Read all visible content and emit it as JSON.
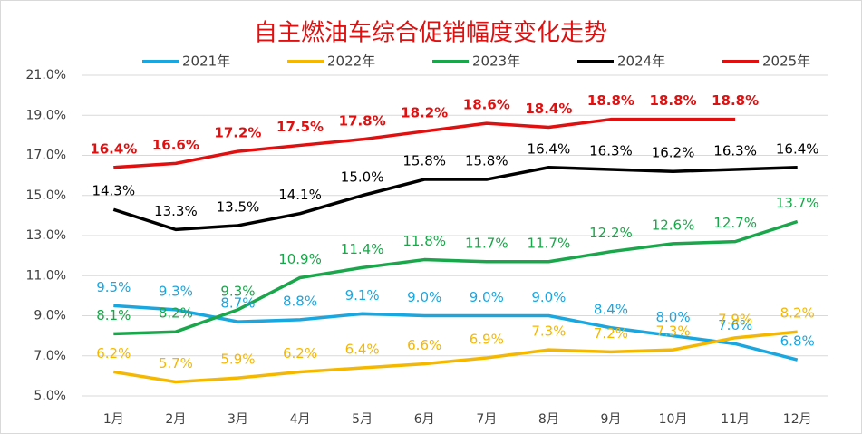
{
  "chart_data": {
    "type": "line",
    "title": "自主燃油车综合促销幅度变化走势",
    "categories": [
      "1月",
      "2月",
      "3月",
      "4月",
      "5月",
      "6月",
      "7月",
      "8月",
      "9月",
      "10月",
      "11月",
      "12月"
    ],
    "ylim": [
      5,
      21
    ],
    "yticks": [
      {
        "value": 5,
        "label": "5.0%"
      },
      {
        "value": 7,
        "label": "7.0%"
      },
      {
        "value": 9,
        "label": "9.0%"
      },
      {
        "value": 11,
        "label": "11.0%"
      },
      {
        "value": 13,
        "label": "13.0%"
      },
      {
        "value": 15,
        "label": "15.0%"
      },
      {
        "value": 17,
        "label": "17.0%"
      },
      {
        "value": 19,
        "label": "19.0%"
      },
      {
        "value": 21,
        "label": "21.0%"
      }
    ],
    "grid": true,
    "legend": "top",
    "series": [
      {
        "name": "2021年",
        "color": "#1aa7e0",
        "values": [
          9.5,
          9.3,
          8.7,
          8.8,
          9.1,
          9.0,
          9.0,
          9.0,
          8.4,
          8.0,
          7.6,
          6.8
        ],
        "value_labels": [
          "9.5%",
          "9.3%",
          "8.7%",
          "8.8%",
          "9.1%",
          "9.0%",
          "9.0%",
          "9.0%",
          "8.4%",
          "8.0%",
          "7.6%",
          "6.8%"
        ]
      },
      {
        "name": "2022年",
        "color": "#f5b800",
        "values": [
          6.2,
          5.7,
          5.9,
          6.2,
          6.4,
          6.6,
          6.9,
          7.3,
          7.2,
          7.3,
          7.9,
          8.2
        ],
        "value_labels": [
          "6.2%",
          "5.7%",
          "5.9%",
          "6.2%",
          "6.4%",
          "6.6%",
          "6.9%",
          "7.3%",
          "7.2%",
          "7.3%",
          "7.9%",
          "8.2%"
        ]
      },
      {
        "name": "2023年",
        "color": "#1aa64a",
        "values": [
          8.1,
          8.2,
          9.3,
          10.9,
          11.4,
          11.8,
          11.7,
          11.7,
          12.2,
          12.6,
          12.7,
          13.7
        ],
        "value_labels": [
          "8.1%",
          "8.2%",
          "9.3%",
          "10.9%",
          "11.4%",
          "11.8%",
          "11.7%",
          "11.7%",
          "12.2%",
          "12.6%",
          "12.7%",
          "13.7%"
        ]
      },
      {
        "name": "2024年",
        "color": "#000000",
        "values": [
          14.3,
          13.3,
          13.5,
          14.1,
          15.0,
          15.8,
          15.8,
          16.4,
          16.3,
          16.2,
          16.3,
          16.4
        ],
        "value_labels": [
          "14.3%",
          "13.3%",
          "13.5%",
          "14.1%",
          "15.0%",
          "15.8%",
          "15.8%",
          "16.4%",
          "16.3%",
          "16.2%",
          "16.3%",
          "16.4%"
        ]
      },
      {
        "name": "2025年",
        "color": "#e01010",
        "values": [
          16.4,
          16.6,
          17.2,
          17.5,
          17.8,
          18.2,
          18.6,
          18.4,
          18.8,
          18.8,
          18.8,
          null
        ],
        "value_labels": [
          "16.4%",
          "16.6%",
          "17.2%",
          "17.5%",
          "17.8%",
          "18.2%",
          "18.6%",
          "18.4%",
          "18.8%",
          "18.8%",
          "18.8%",
          null
        ]
      }
    ]
  }
}
